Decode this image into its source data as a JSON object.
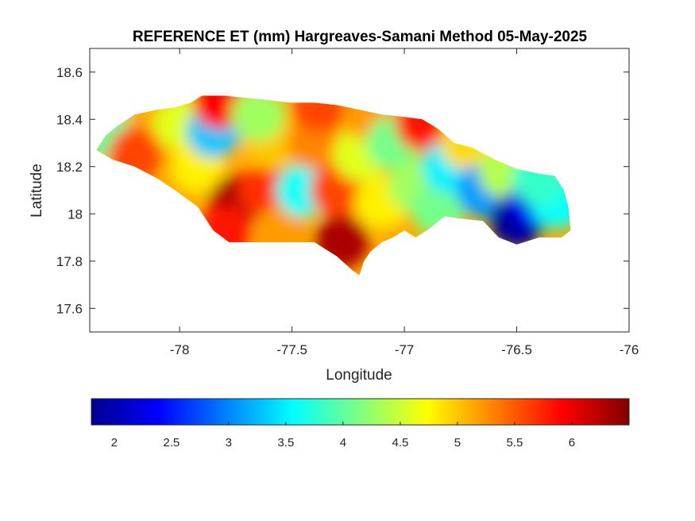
{
  "chart_data": {
    "type": "heatmap",
    "title": "REFERENCE ET (mm) Hargreaves-Samani Method  05-May-2025",
    "xlabel": "Longitude",
    "ylabel": "Latitude",
    "xlim": [
      -78.4,
      -76
    ],
    "ylim": [
      17.5,
      18.7
    ],
    "xticks": [
      -78,
      -77.5,
      -77,
      -76.5,
      -76
    ],
    "xtick_labels": [
      "-78",
      "-77.5",
      "-77",
      "-76.5",
      "-76"
    ],
    "yticks": [
      17.6,
      17.8,
      18,
      18.2,
      18.4,
      18.6
    ],
    "ytick_labels": [
      "17.6",
      "17.8",
      "18",
      "18.2",
      "18.4",
      "18.6"
    ],
    "colormap": "jet",
    "colorbar": {
      "placement": "bottom",
      "range": [
        1.8,
        6.5
      ],
      "ticks": [
        2,
        2.5,
        3,
        3.5,
        4,
        4.5,
        5,
        5.5,
        6
      ],
      "tick_labels": [
        "2",
        "2.5",
        "3",
        "3.5",
        "4",
        "4.5",
        "5",
        "5.5",
        "6"
      ]
    },
    "regions": [
      {
        "lon": -78.3,
        "lat": 18.33,
        "value": 4.0
      },
      {
        "lon": -78.15,
        "lat": 18.3,
        "value": 5.2
      },
      {
        "lon": -78.2,
        "lat": 18.25,
        "value": 5.6
      },
      {
        "lon": -78.0,
        "lat": 18.38,
        "value": 4.6
      },
      {
        "lon": -77.92,
        "lat": 18.2,
        "value": 4.8
      },
      {
        "lon": -77.85,
        "lat": 18.35,
        "value": 3.3
      },
      {
        "lon": -77.82,
        "lat": 18.47,
        "value": 5.9
      },
      {
        "lon": -77.75,
        "lat": 18.05,
        "value": 6.3
      },
      {
        "lon": -77.8,
        "lat": 17.92,
        "value": 5.8
      },
      {
        "lon": -77.62,
        "lat": 18.1,
        "value": 5.7
      },
      {
        "lon": -77.6,
        "lat": 18.3,
        "value": 5.0
      },
      {
        "lon": -77.65,
        "lat": 18.42,
        "value": 4.3
      },
      {
        "lon": -77.55,
        "lat": 17.92,
        "value": 5.2
      },
      {
        "lon": -77.45,
        "lat": 18.1,
        "value": 3.6
      },
      {
        "lon": -77.4,
        "lat": 18.3,
        "value": 5.3
      },
      {
        "lon": -77.38,
        "lat": 18.46,
        "value": 5.6
      },
      {
        "lon": -77.3,
        "lat": 18.1,
        "value": 5.6
      },
      {
        "lon": -77.28,
        "lat": 17.88,
        "value": 6.3
      },
      {
        "lon": -77.2,
        "lat": 18.25,
        "value": 4.6
      },
      {
        "lon": -77.15,
        "lat": 18.42,
        "value": 5.2
      },
      {
        "lon": -77.1,
        "lat": 18.05,
        "value": 4.8
      },
      {
        "lon": -77.05,
        "lat": 18.3,
        "value": 4.1
      },
      {
        "lon": -76.92,
        "lat": 18.38,
        "value": 5.8
      },
      {
        "lon": -76.95,
        "lat": 18.12,
        "value": 4.3
      },
      {
        "lon": -76.85,
        "lat": 18.02,
        "value": 4.1
      },
      {
        "lon": -76.8,
        "lat": 18.2,
        "value": 3.5
      },
      {
        "lon": -76.72,
        "lat": 18.3,
        "value": 4.9
      },
      {
        "lon": -76.65,
        "lat": 18.1,
        "value": 3.1
      },
      {
        "lon": -76.55,
        "lat": 18.18,
        "value": 4.4
      },
      {
        "lon": -76.5,
        "lat": 17.97,
        "value": 1.9
      },
      {
        "lon": -76.42,
        "lat": 18.05,
        "value": 2.3
      },
      {
        "lon": -76.32,
        "lat": 18.05,
        "value": 3.6
      },
      {
        "lon": -76.4,
        "lat": 18.15,
        "value": 3.8
      }
    ]
  }
}
